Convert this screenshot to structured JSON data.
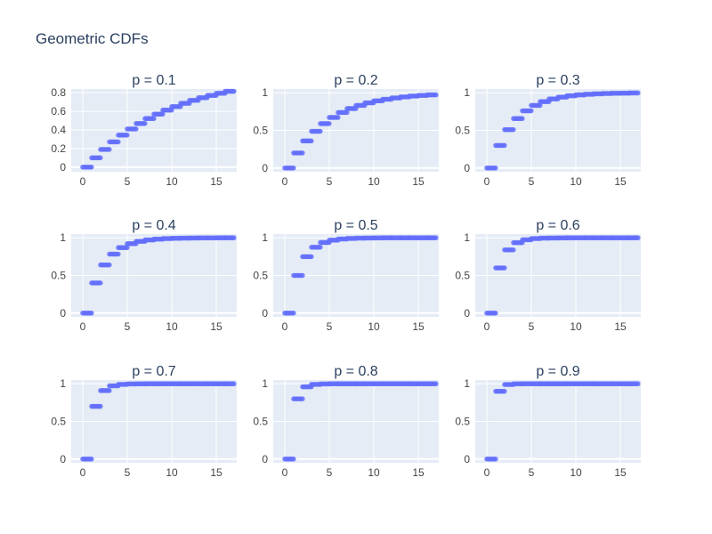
{
  "figure_title": "Geometric CDFs",
  "colors": {
    "marker": "#636efa",
    "plot_bg": "#e5ecf6",
    "grid": "#ffffff",
    "text": "#2a3f5f",
    "tick_text": "#444444"
  },
  "chart_data": [
    {
      "type": "scatter",
      "title": "p = 0.1",
      "p": 0.1,
      "xlim": [
        -1.3,
        17.3
      ],
      "ylim": [
        -0.05,
        0.84
      ],
      "xticks": [
        0,
        5,
        10,
        15
      ],
      "yticks": [
        0,
        0.2,
        0.4,
        0.6,
        0.8
      ],
      "ytick_labels": [
        "0",
        "0.2",
        "0.4",
        "0.6",
        "0.8"
      ],
      "x": [
        0,
        1,
        2,
        3,
        4,
        5,
        6,
        7,
        8,
        9,
        10,
        11,
        12,
        13,
        14,
        15,
        16
      ],
      "y": [
        0,
        0.1,
        0.19,
        0.271,
        0.344,
        0.41,
        0.469,
        0.522,
        0.57,
        0.613,
        0.651,
        0.686,
        0.718,
        0.746,
        0.771,
        0.794,
        0.815
      ]
    },
    {
      "type": "scatter",
      "title": "p = 0.2",
      "p": 0.2,
      "xlim": [
        -1.3,
        17.3
      ],
      "ylim": [
        -0.05,
        1.05
      ],
      "xticks": [
        0,
        5,
        10,
        15
      ],
      "yticks": [
        0,
        0.5,
        1
      ],
      "ytick_labels": [
        "0",
        "0.5",
        "1"
      ],
      "x": [
        0,
        1,
        2,
        3,
        4,
        5,
        6,
        7,
        8,
        9,
        10,
        11,
        12,
        13,
        14,
        15,
        16
      ],
      "y": [
        0,
        0.2,
        0.36,
        0.488,
        0.59,
        0.672,
        0.738,
        0.79,
        0.832,
        0.866,
        0.893,
        0.914,
        0.931,
        0.945,
        0.956,
        0.965,
        0.972
      ]
    },
    {
      "type": "scatter",
      "title": "p = 0.3",
      "p": 0.3,
      "xlim": [
        -1.3,
        17.3
      ],
      "ylim": [
        -0.05,
        1.05
      ],
      "xticks": [
        0,
        5,
        10,
        15
      ],
      "yticks": [
        0,
        0.5,
        1
      ],
      "ytick_labels": [
        "0",
        "0.5",
        "1"
      ],
      "x": [
        0,
        1,
        2,
        3,
        4,
        5,
        6,
        7,
        8,
        9,
        10,
        11,
        12,
        13,
        14,
        15,
        16
      ],
      "y": [
        0,
        0.3,
        0.51,
        0.657,
        0.76,
        0.832,
        0.882,
        0.918,
        0.942,
        0.96,
        0.972,
        0.98,
        0.986,
        0.99,
        0.993,
        0.995,
        0.997
      ]
    },
    {
      "type": "scatter",
      "title": "p = 0.4",
      "p": 0.4,
      "xlim": [
        -1.3,
        17.3
      ],
      "ylim": [
        -0.05,
        1.05
      ],
      "xticks": [
        0,
        5,
        10,
        15
      ],
      "yticks": [
        0,
        0.5,
        1
      ],
      "ytick_labels": [
        "0",
        "0.5",
        "1"
      ],
      "x": [
        0,
        1,
        2,
        3,
        4,
        5,
        6,
        7,
        8,
        9,
        10,
        11,
        12,
        13,
        14,
        15,
        16
      ],
      "y": [
        0,
        0.4,
        0.64,
        0.784,
        0.87,
        0.922,
        0.953,
        0.972,
        0.983,
        0.99,
        0.994,
        0.996,
        0.998,
        0.999,
        0.999,
        1,
        1
      ]
    },
    {
      "type": "scatter",
      "title": "p = 0.5",
      "p": 0.5,
      "xlim": [
        -1.3,
        17.3
      ],
      "ylim": [
        -0.05,
        1.05
      ],
      "xticks": [
        0,
        5,
        10,
        15
      ],
      "yticks": [
        0,
        0.5,
        1
      ],
      "ytick_labels": [
        "0",
        "0.5",
        "1"
      ],
      "x": [
        0,
        1,
        2,
        3,
        4,
        5,
        6,
        7,
        8,
        9,
        10,
        11,
        12,
        13,
        14,
        15,
        16
      ],
      "y": [
        0,
        0.5,
        0.75,
        0.875,
        0.938,
        0.969,
        0.984,
        0.992,
        0.996,
        0.998,
        0.999,
        1,
        1,
        1,
        1,
        1,
        1
      ]
    },
    {
      "type": "scatter",
      "title": "p = 0.6",
      "p": 0.6,
      "xlim": [
        -1.3,
        17.3
      ],
      "ylim": [
        -0.05,
        1.05
      ],
      "xticks": [
        0,
        5,
        10,
        15
      ],
      "yticks": [
        0,
        0.5,
        1
      ],
      "ytick_labels": [
        "0",
        "0.5",
        "1"
      ],
      "x": [
        0,
        1,
        2,
        3,
        4,
        5,
        6,
        7,
        8,
        9,
        10,
        11,
        12,
        13,
        14,
        15,
        16
      ],
      "y": [
        0,
        0.6,
        0.84,
        0.936,
        0.974,
        0.99,
        0.996,
        0.998,
        0.999,
        1,
        1,
        1,
        1,
        1,
        1,
        1,
        1
      ]
    },
    {
      "type": "scatter",
      "title": "p = 0.7",
      "p": 0.7,
      "xlim": [
        -1.3,
        17.3
      ],
      "ylim": [
        -0.05,
        1.05
      ],
      "xticks": [
        0,
        5,
        10,
        15
      ],
      "yticks": [
        0,
        0.5,
        1
      ],
      "ytick_labels": [
        "0",
        "0.5",
        "1"
      ],
      "x": [
        0,
        1,
        2,
        3,
        4,
        5,
        6,
        7,
        8,
        9,
        10,
        11,
        12,
        13,
        14,
        15,
        16
      ],
      "y": [
        0,
        0.7,
        0.91,
        0.973,
        0.992,
        0.998,
        0.999,
        1,
        1,
        1,
        1,
        1,
        1,
        1,
        1,
        1,
        1
      ]
    },
    {
      "type": "scatter",
      "title": "p = 0.8",
      "p": 0.8,
      "xlim": [
        -1.3,
        17.3
      ],
      "ylim": [
        -0.05,
        1.05
      ],
      "xticks": [
        0,
        5,
        10,
        15
      ],
      "yticks": [
        0,
        0.5,
        1
      ],
      "ytick_labels": [
        "0",
        "0.5",
        "1"
      ],
      "x": [
        0,
        1,
        2,
        3,
        4,
        5,
        6,
        7,
        8,
        9,
        10,
        11,
        12,
        13,
        14,
        15,
        16
      ],
      "y": [
        0,
        0.8,
        0.96,
        0.992,
        0.998,
        1,
        1,
        1,
        1,
        1,
        1,
        1,
        1,
        1,
        1,
        1,
        1
      ]
    },
    {
      "type": "scatter",
      "title": "p = 0.9",
      "p": 0.9,
      "xlim": [
        -1.3,
        17.3
      ],
      "ylim": [
        -0.05,
        1.05
      ],
      "xticks": [
        0,
        5,
        10,
        15
      ],
      "yticks": [
        0,
        0.5,
        1
      ],
      "ytick_labels": [
        "0",
        "0.5",
        "1"
      ],
      "x": [
        0,
        1,
        2,
        3,
        4,
        5,
        6,
        7,
        8,
        9,
        10,
        11,
        12,
        13,
        14,
        15,
        16
      ],
      "y": [
        0,
        0.9,
        0.99,
        0.999,
        1,
        1,
        1,
        1,
        1,
        1,
        1,
        1,
        1,
        1,
        1,
        1,
        1
      ]
    }
  ]
}
